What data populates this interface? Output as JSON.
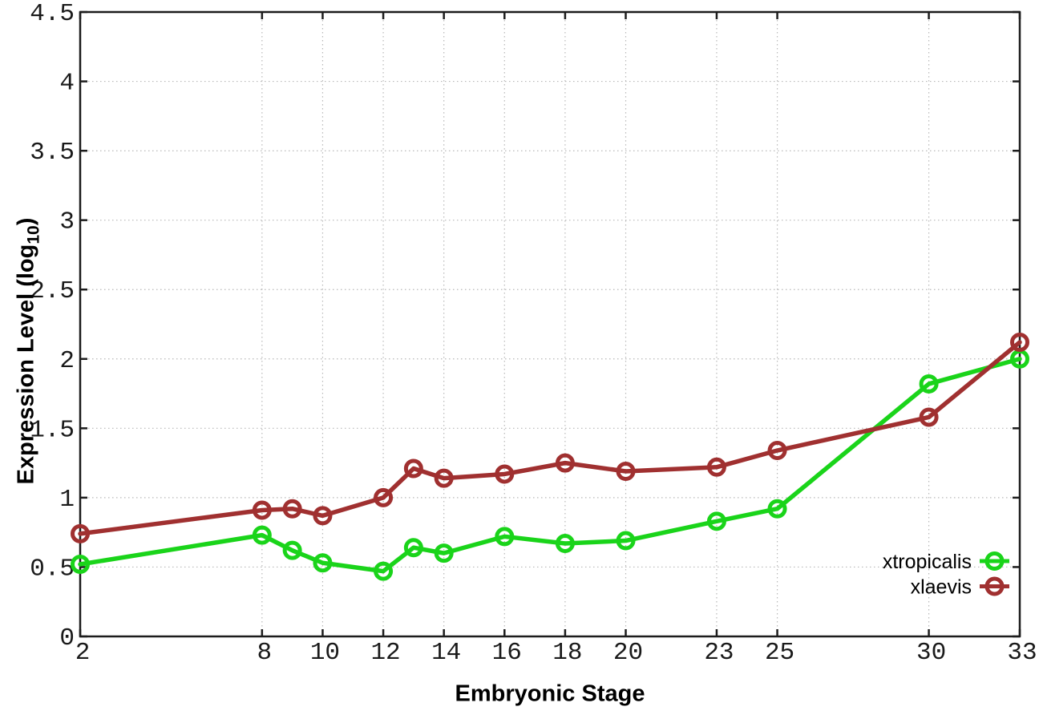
{
  "figure": {
    "xlabel": "Embryonic Stage",
    "ylabel_main": "Expression Level (log",
    "ylabel_sub": "10",
    "ylabel_close": ")"
  },
  "chart_data": {
    "type": "line",
    "title": "",
    "xlabel": "Embryonic Stage",
    "ylabel": "Expression Level (log10)",
    "x": [
      2,
      8,
      9,
      10,
      12,
      13,
      14,
      16,
      18,
      20,
      23,
      25,
      30,
      33
    ],
    "series": [
      {
        "name": "xtropicalis",
        "color": "#1ad41a",
        "values": [
          0.52,
          0.73,
          0.62,
          0.53,
          0.47,
          0.64,
          0.6,
          0.72,
          0.67,
          0.69,
          0.83,
          0.92,
          1.82,
          2.0
        ]
      },
      {
        "name": "xlaevis",
        "color": "#a03030",
        "values": [
          0.74,
          0.91,
          0.92,
          0.87,
          1.0,
          1.21,
          1.14,
          1.17,
          1.25,
          1.19,
          1.22,
          1.34,
          1.58,
          2.12
        ]
      }
    ],
    "xticks": [
      2,
      8,
      10,
      12,
      14,
      16,
      18,
      20,
      23,
      25,
      30,
      33
    ],
    "xtick_labels": [
      "2",
      "8",
      "10",
      "12",
      "14",
      "16",
      "18",
      "20",
      "23",
      "25",
      "30",
      "33"
    ],
    "yticks": [
      0,
      0.5,
      1,
      1.5,
      2,
      2.5,
      3,
      3.5,
      4,
      4.5
    ],
    "ytick_labels": [
      "0",
      "0.5",
      "1",
      "1.5",
      "2",
      "2.5",
      "3",
      "3.5",
      "4",
      "4.5"
    ],
    "xlim": [
      2,
      33
    ],
    "ylim": [
      0,
      4.5
    ],
    "grid": true,
    "legend_position": "bottom-right",
    "marker": "open-circle",
    "background": "#ffffff",
    "axis_color": "#1c1c1c",
    "grid_color": "#b8b8b8"
  }
}
